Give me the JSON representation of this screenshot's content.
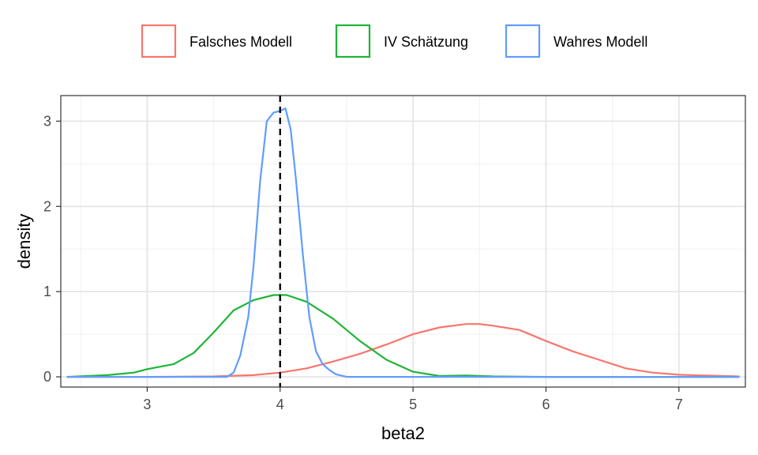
{
  "chart_data": {
    "type": "line",
    "xlabel": "beta2",
    "ylabel": "density",
    "xlim": [
      2.35,
      7.5
    ],
    "ylim": [
      -0.12,
      3.3
    ],
    "xticks": [
      3,
      4,
      5,
      6,
      7
    ],
    "yticks": [
      0,
      1,
      2,
      3
    ],
    "legend_position": "top",
    "grid": true,
    "reference_line": {
      "x": 4,
      "style": "dashed",
      "color": "#000000"
    },
    "series": [
      {
        "name": "Falsches Modell",
        "color": "#F8766D",
        "points": [
          [
            2.4,
            0.0
          ],
          [
            3.0,
            0.0
          ],
          [
            3.5,
            0.005
          ],
          [
            3.8,
            0.02
          ],
          [
            4.0,
            0.05
          ],
          [
            4.2,
            0.1
          ],
          [
            4.4,
            0.18
          ],
          [
            4.6,
            0.27
          ],
          [
            4.8,
            0.38
          ],
          [
            5.0,
            0.5
          ],
          [
            5.2,
            0.58
          ],
          [
            5.4,
            0.62
          ],
          [
            5.5,
            0.62
          ],
          [
            5.6,
            0.6
          ],
          [
            5.8,
            0.55
          ],
          [
            6.0,
            0.42
          ],
          [
            6.2,
            0.3
          ],
          [
            6.4,
            0.2
          ],
          [
            6.6,
            0.1
          ],
          [
            6.8,
            0.05
          ],
          [
            7.0,
            0.025
          ],
          [
            7.2,
            0.015
          ],
          [
            7.45,
            0.005
          ]
        ]
      },
      {
        "name": "IV Schätzung",
        "color": "#1FB437",
        "points": [
          [
            2.4,
            0.0
          ],
          [
            2.7,
            0.02
          ],
          [
            2.9,
            0.05
          ],
          [
            3.0,
            0.09
          ],
          [
            3.2,
            0.15
          ],
          [
            3.35,
            0.28
          ],
          [
            3.5,
            0.52
          ],
          [
            3.65,
            0.78
          ],
          [
            3.8,
            0.9
          ],
          [
            3.95,
            0.96
          ],
          [
            4.05,
            0.96
          ],
          [
            4.2,
            0.88
          ],
          [
            4.4,
            0.68
          ],
          [
            4.6,
            0.42
          ],
          [
            4.8,
            0.2
          ],
          [
            5.0,
            0.06
          ],
          [
            5.2,
            0.01
          ],
          [
            5.4,
            0.015
          ],
          [
            5.6,
            0.005
          ],
          [
            6.0,
            0.0
          ],
          [
            7.45,
            0.0
          ]
        ]
      },
      {
        "name": "Wahres Modell",
        "color": "#619CFF",
        "points": [
          [
            2.4,
            0.0
          ],
          [
            3.6,
            0.0
          ],
          [
            3.65,
            0.05
          ],
          [
            3.7,
            0.25
          ],
          [
            3.76,
            0.7
          ],
          [
            3.8,
            1.3
          ],
          [
            3.85,
            2.3
          ],
          [
            3.9,
            3.0
          ],
          [
            3.95,
            3.1
          ],
          [
            4.0,
            3.12
          ],
          [
            4.04,
            3.15
          ],
          [
            4.08,
            2.9
          ],
          [
            4.12,
            2.3
          ],
          [
            4.17,
            1.45
          ],
          [
            4.22,
            0.7
          ],
          [
            4.27,
            0.3
          ],
          [
            4.32,
            0.15
          ],
          [
            4.37,
            0.08
          ],
          [
            4.42,
            0.03
          ],
          [
            4.5,
            0.0
          ],
          [
            7.45,
            0.0
          ]
        ]
      }
    ]
  }
}
